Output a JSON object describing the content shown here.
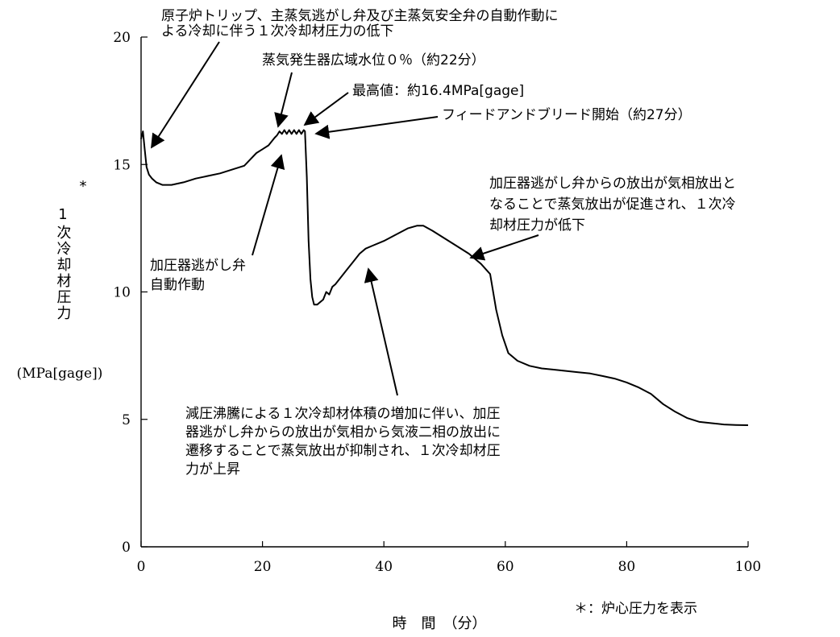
{
  "chart_data": {
    "type": "line",
    "title": "",
    "xlabel": "時　間　（分）",
    "ylabel": "1次冷却材圧力",
    "ylabel_marker": "*",
    "yunit": "(MPa[gage])",
    "footnote": "＊：炉心圧力を表示",
    "xlim": [
      0,
      100
    ],
    "ylim": [
      0,
      20
    ],
    "xticks": [
      0,
      20,
      40,
      60,
      80,
      100
    ],
    "yticks": [
      0,
      5,
      10,
      15,
      20
    ],
    "grid": false,
    "legend": "none",
    "series": [
      {
        "name": "",
        "x": [
          0,
          0.3,
          0.6,
          0.9,
          1.3,
          1.8,
          2.5,
          3.5,
          5,
          7,
          9,
          11,
          13,
          15,
          17,
          18,
          19,
          20,
          21,
          22,
          22.4,
          22.8,
          23.2,
          23.6,
          24,
          24.4,
          24.8,
          25.2,
          25.6,
          26,
          26.4,
          26.8,
          27.0,
          27.3,
          27.6,
          27.9,
          28.2,
          28.5,
          29,
          30,
          30.5,
          31,
          31.5,
          32,
          33,
          34,
          35,
          36,
          37,
          38,
          40,
          42,
          44,
          45.5,
          46.5,
          48,
          50,
          52,
          54,
          56,
          57.5,
          58.5,
          59.5,
          60.5,
          62,
          64,
          66,
          68,
          70,
          72,
          74,
          76,
          78,
          80,
          82,
          84,
          86,
          88,
          90,
          92,
          94,
          96,
          98,
          100
        ],
        "y": [
          16.0,
          16.3,
          15.6,
          14.9,
          14.6,
          14.45,
          14.3,
          14.2,
          14.2,
          14.3,
          14.45,
          14.55,
          14.65,
          14.8,
          14.95,
          15.2,
          15.45,
          15.6,
          15.75,
          16.05,
          16.15,
          16.3,
          16.2,
          16.35,
          16.2,
          16.35,
          16.2,
          16.35,
          16.2,
          16.35,
          16.2,
          16.35,
          16.3,
          14.5,
          12.0,
          10.5,
          9.8,
          9.5,
          9.5,
          9.7,
          10.0,
          9.9,
          10.2,
          10.3,
          10.6,
          10.9,
          11.2,
          11.5,
          11.7,
          11.8,
          12.0,
          12.25,
          12.5,
          12.6,
          12.6,
          12.4,
          12.1,
          11.8,
          11.5,
          11.1,
          10.7,
          9.3,
          8.3,
          7.6,
          7.3,
          7.1,
          7.0,
          6.95,
          6.9,
          6.85,
          6.8,
          6.7,
          6.6,
          6.45,
          6.25,
          6.0,
          5.6,
          5.3,
          5.05,
          4.9,
          4.85,
          4.8,
          4.78,
          4.77
        ],
        "color": "#000000"
      }
    ],
    "annotations": [
      {
        "lines": [
          "原子炉トリップ、主蒸気逃がし弁及び主蒸気安全弁の自動作動に",
          "よる冷却に伴う１次冷却材圧力の低下"
        ],
        "target": [
          1.5,
          15.6
        ]
      },
      {
        "lines": [
          "蒸気発生器広域水位０％（約22分）"
        ],
        "target": [
          22.6,
          16.4
        ]
      },
      {
        "lines": [
          "最高値：約16.4MPa[gage]"
        ],
        "target": [
          26.7,
          16.45
        ]
      },
      {
        "lines": [
          "フィードアンドブリード開始（約27分）"
        ],
        "target": [
          28.3,
          16.25
        ]
      },
      {
        "lines": [
          "加圧器逃がし弁",
          "自動作動"
        ],
        "target": [
          22.8,
          15.8
        ]
      },
      {
        "lines": [
          "加圧器逃がし弁からの放出が気相放出と",
          "なることで蒸気放出が促進され、１次冷",
          "却材圧力が低下"
        ],
        "target": [
          54.3,
          11.45
        ]
      },
      {
        "lines": [
          "減圧沸騰による１次冷却材体積の増加に伴い、加圧",
          "器逃がし弁からの放出が気相から気液二相の放出に",
          "遷移することで蒸気放出が抑制され、１次冷却材圧",
          "力が上昇"
        ],
        "target": [
          37.5,
          11.0
        ]
      }
    ]
  }
}
